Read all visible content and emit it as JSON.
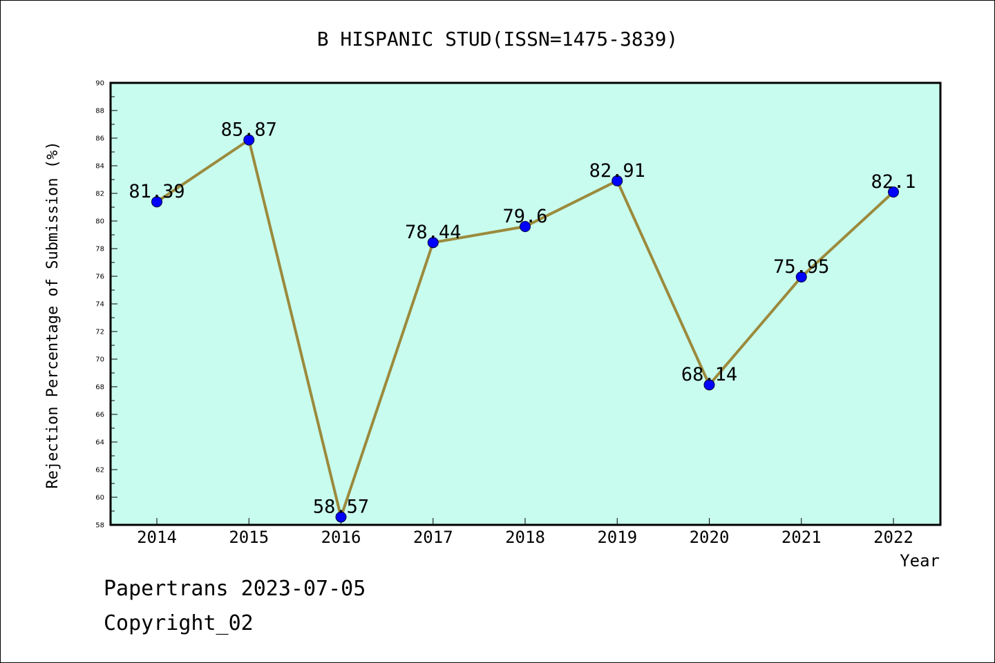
{
  "chart_data": {
    "type": "line",
    "title": "B HISPANIC STUD(ISSN=1475-3839)",
    "xlabel": "Year",
    "ylabel": "Rejection Percentage of Submission (%)",
    "x": [
      "2014",
      "2015",
      "2016",
      "2017",
      "2018",
      "2019",
      "2020",
      "2021",
      "2022"
    ],
    "series": [
      {
        "values": [
          81.39,
          85.87,
          58.57,
          78.44,
          79.6,
          82.91,
          68.14,
          75.95,
          82.1
        ],
        "labels": [
          "81.39",
          "85.87",
          "58.57",
          "78.44",
          "79.6",
          "82.91",
          "68.14",
          "75.95",
          "82.1"
        ]
      }
    ],
    "ylim": [
      58,
      90
    ],
    "yticks": [
      "58",
      "60",
      "62",
      "64",
      "66",
      "68",
      "70",
      "72",
      "74",
      "76",
      "78",
      "80",
      "82",
      "84",
      "86",
      "88",
      "90"
    ],
    "grid": false,
    "colors": {
      "plot_background": "#c8fcee",
      "line": "#9b8a3c",
      "marker": "#0000ff"
    }
  },
  "footer": {
    "date_text": "Papertrans 2023-07-05",
    "copyright_text": "Copyright_02"
  }
}
